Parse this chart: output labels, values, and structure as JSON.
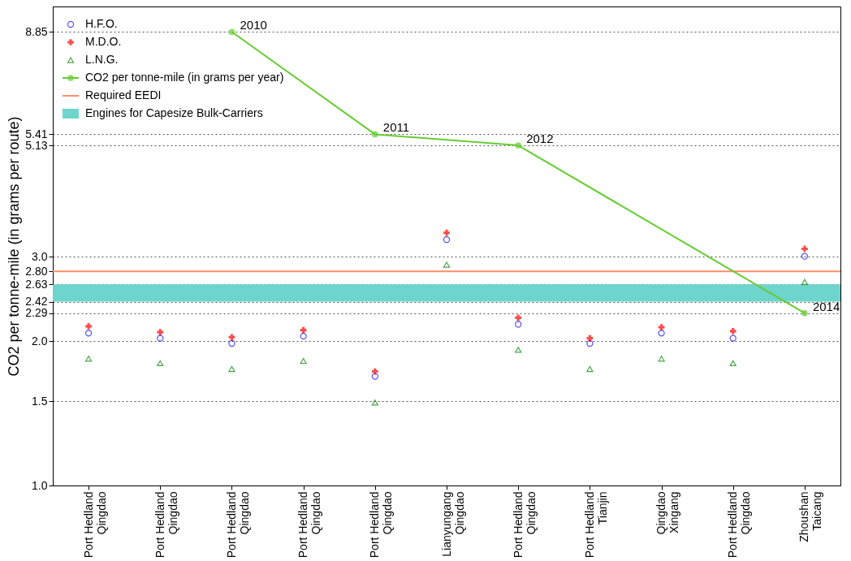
{
  "chart_data": {
    "type": "scatter",
    "ylabel": "CO2 per tonne-mile (in grams per route)",
    "categories": [
      "Port Hedland\nQingdao",
      "Port Hedland\nQingdao",
      "Port Hedland\nQingdao",
      "Port Hedland\nQingdao",
      "Port Hedland\nQingdao",
      "Lianyungang\nQingdao",
      "Port Hedland\nQingdao",
      "Port Hedland\nTianjin",
      "Qingdao\nXingang",
      "Port Hedland\nQingdao",
      "Zhoushan\nTaicang"
    ],
    "series": [
      {
        "name": "H.F.O.",
        "color": "#0000ff",
        "marker": "circle",
        "values": [
          2.08,
          2.03,
          1.98,
          2.05,
          1.69,
          3.26,
          2.17,
          1.98,
          2.08,
          2.03,
          3.01
        ]
      },
      {
        "name": "M.D.O.",
        "color": "#ff0000",
        "marker": "cross",
        "values": [
          2.15,
          2.09,
          2.04,
          2.11,
          1.73,
          3.37,
          2.24,
          2.03,
          2.14,
          2.1,
          3.12
        ]
      },
      {
        "name": "L.N.G.",
        "color": "#008000",
        "marker": "triangle",
        "values": [
          1.84,
          1.8,
          1.75,
          1.82,
          1.49,
          2.89,
          1.92,
          1.75,
          1.84,
          1.8,
          2.66
        ]
      },
      {
        "name": "CO2 per tonne-mile (in grams per year)",
        "type": "line",
        "color": "#66cc33",
        "marker": "circle",
        "values": [
          null,
          null,
          8.85,
          null,
          5.41,
          null,
          5.13,
          null,
          null,
          null,
          2.29
        ]
      }
    ],
    "annotations": [
      "2010",
      "2011",
      "2012",
      "2014"
    ],
    "ref_lines": [
      {
        "axis": "y",
        "value": 2.8,
        "label": "Required EEDI",
        "color": "#ff8c69"
      }
    ],
    "bands": [
      {
        "axis": "y",
        "from": 2.42,
        "to": 2.63,
        "label": "Engines for Capesize Bulk-Carriers",
        "color": "#6dd5cc"
      }
    ],
    "log": true,
    "ylim": [
      1,
      10
    ],
    "yticks": [
      {
        "value": 1,
        "label": "1.0"
      },
      1.5,
      {
        "value": 2,
        "label": "2.0"
      },
      2.29,
      2.42,
      2.63,
      {
        "value": 2.8,
        "label": "2.80"
      },
      {
        "value": 3,
        "label": "3.0"
      },
      5.13,
      5.41,
      8.85
    ],
    "grid": "y",
    "legend": "top left"
  }
}
